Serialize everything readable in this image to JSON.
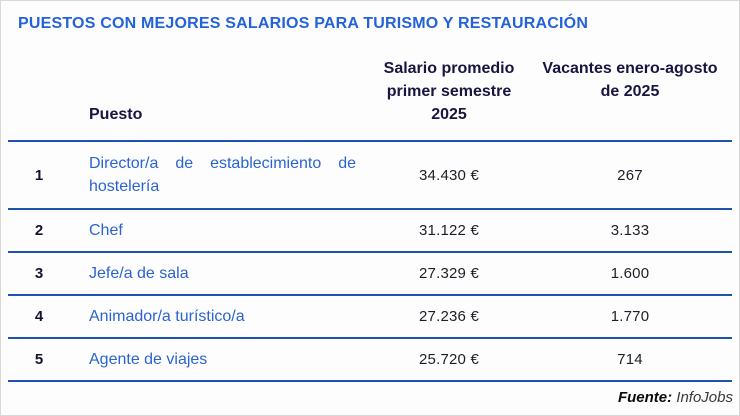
{
  "title": "PUESTOS CON MEJORES SALARIOS PARA TURISMO Y RESTAURACIÓN",
  "table": {
    "headers": {
      "puesto": "Puesto",
      "salario": "Salario promedio primer semestre 2025",
      "vacantes": "Vacantes enero-agosto de 2025"
    },
    "rows": [
      {
        "rank": "1",
        "puesto": "Director/a de establecimiento de hostelería",
        "salario": "34.430 €",
        "vacantes": "267"
      },
      {
        "rank": "2",
        "puesto": "Chef",
        "salario": "31.122 €",
        "vacantes": "3.133"
      },
      {
        "rank": "3",
        "puesto": "Jefe/a de sala",
        "salario": "27.329 €",
        "vacantes": "1.600"
      },
      {
        "rank": "4",
        "puesto": "Animador/a turístico/a",
        "salario": "27.236 €",
        "vacantes": "1.770"
      },
      {
        "rank": "5",
        "puesto": "Agente de viajes",
        "salario": "25.720 €",
        "vacantes": "714"
      }
    ]
  },
  "footer": {
    "source_label": "Fuente:",
    "source_value": "InfoJobs"
  },
  "colors": {
    "title_blue": "#2362d9",
    "link_blue": "#2a63d4",
    "header_navy": "#181540",
    "separator_blue": "#1e52ab",
    "body_text": "#1e1e28",
    "outer_border": "#d8d8d8"
  },
  "chart_data": {
    "type": "table",
    "title": "PUESTOS CON MEJORES SALARIOS PARA TURISMO Y RESTAURACIÓN",
    "columns": [
      "Puesto",
      "Salario promedio primer semestre 2025 (EUR)",
      "Vacantes enero-agosto de 2025"
    ],
    "rows": [
      {
        "rank": 1,
        "puesto": "Director/a de establecimiento de hostelería",
        "salario_eur": 34430,
        "vacantes": 267
      },
      {
        "rank": 2,
        "puesto": "Chef",
        "salario_eur": 31122,
        "vacantes": 3133
      },
      {
        "rank": 3,
        "puesto": "Jefe/a de sala",
        "salario_eur": 27329,
        "vacantes": 1600
      },
      {
        "rank": 4,
        "puesto": "Animador/a turístico/a",
        "salario_eur": 27236,
        "vacantes": 1770
      },
      {
        "rank": 5,
        "puesto": "Agente de viajes",
        "salario_eur": 25720,
        "vacantes": 714
      }
    ],
    "source": "Fuente: InfoJobs",
    "layout": "ranked table, blue row separators, header bold navy, job titles styled as blue links"
  }
}
